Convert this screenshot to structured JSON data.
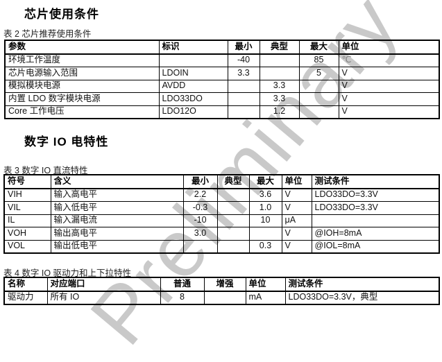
{
  "page": {
    "watermark": "Preliminary",
    "colors": {
      "text": "#1a1a1a",
      "table_border": "#000000",
      "watermark": "#c9c9c9",
      "celsius_gray": "#808080"
    }
  },
  "sections": [
    {
      "title": "芯片使用条件"
    },
    {
      "title": "数字 IO 电特性"
    }
  ],
  "tables": [
    {
      "caption": "表 2 芯片推荐使用条件",
      "columns": [
        "参数",
        "标识",
        "最小",
        "典型",
        "最大",
        "单位"
      ],
      "rows": [
        [
          "环境工作温度",
          "",
          "-40",
          "",
          "85",
          "℃"
        ],
        [
          "芯片电源输入范围",
          "LDOIN",
          "3.3",
          "",
          "5",
          "V"
        ],
        [
          "模拟模块电源",
          "AVDD",
          "",
          "3.3",
          "",
          "V"
        ],
        [
          "内置 LDO 数字模块电源",
          "LDO33DO",
          "",
          "3.3",
          "",
          "V"
        ],
        [
          "Core 工作电压",
          "LDO12O",
          "",
          "1.2",
          "",
          "V"
        ]
      ]
    },
    {
      "caption": "表 3 数字 IO 直流特性",
      "columns": [
        "符号",
        "含义",
        "最小",
        "典型",
        "最大",
        "单位",
        "测试条件"
      ],
      "rows": [
        [
          "VIH",
          "输入高电平",
          "2.2",
          "",
          "3.6",
          "V",
          "LDO33DO=3.3V"
        ],
        [
          "VIL",
          "输入低电平",
          "-0.3",
          "",
          "1.0",
          "V",
          "LDO33DO=3.3V"
        ],
        [
          "IL",
          "输入漏电流",
          "-10",
          "",
          "10",
          "μA",
          ""
        ],
        [
          "VOH",
          "输出高电平",
          "3.0",
          "",
          "",
          "V",
          "@IOH=8mA"
        ],
        [
          "VOL",
          "输出低电平",
          "",
          "",
          "0.3",
          "V",
          "@IOL=8mA"
        ]
      ]
    },
    {
      "caption": "表 4 数字 IO 驱动力和上下拉特性",
      "columns": [
        "名称",
        "对应端口",
        "普通",
        "增强",
        "单位",
        "测试条件"
      ],
      "rows": [
        [
          "驱动力",
          "所有 IO",
          "8",
          "",
          "mA",
          "LDO33DO=3.3V，典型"
        ]
      ]
    }
  ]
}
